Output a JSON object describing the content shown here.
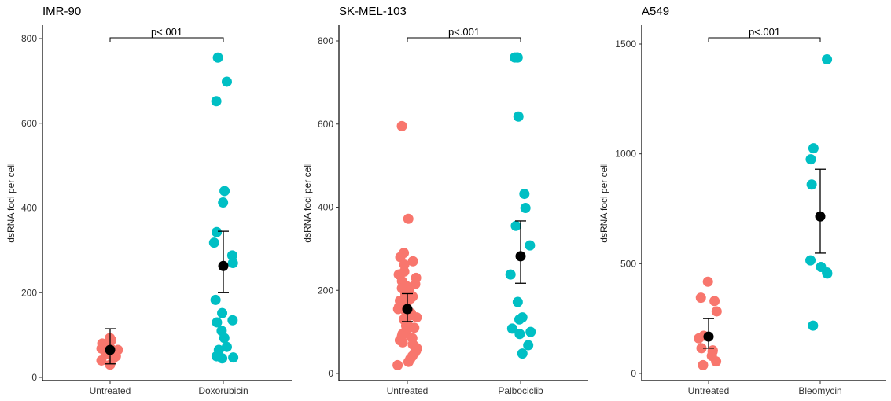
{
  "colors": {
    "control": "#F8766D",
    "treated": "#00BFC4",
    "summary": "#000000"
  },
  "chart_data": [
    {
      "type": "scatter",
      "title": "IMR-90",
      "ylabel": "dsRNA foci per cell",
      "xlabel": "",
      "ylim": [
        0,
        820
      ],
      "yticks": [
        0,
        200,
        400,
        600,
        800
      ],
      "categories": [
        "Untreated",
        "Doxorubicin"
      ],
      "significance": "p<.001",
      "groups": [
        {
          "category": "Untreated",
          "color_key": "control",
          "points": [
            93,
            88,
            80,
            75,
            72,
            70,
            68,
            65,
            62,
            60,
            55,
            50,
            45,
            40,
            30
          ],
          "mean": 65,
          "error": [
            32,
            115
          ]
        },
        {
          "category": "Doxorubicin",
          "color_key": "treated",
          "points": [
            755,
            698,
            652,
            440,
            413,
            343,
            318,
            288,
            270,
            183,
            152,
            135,
            130,
            110,
            93,
            72,
            65,
            50,
            47,
            45
          ],
          "mean": 263,
          "error": [
            200,
            345
          ]
        }
      ]
    },
    {
      "type": "scatter",
      "title": "SK-MEL-103",
      "ylabel": "dsRNA foci per cell",
      "xlabel": "",
      "ylim": [
        0,
        820
      ],
      "yticks": [
        0,
        200,
        400,
        600,
        800
      ],
      "categories": [
        "Untreated",
        "Palbociclib"
      ],
      "significance": "p<.001",
      "groups": [
        {
          "category": "Untreated",
          "color_key": "control",
          "points": [
            595,
            372,
            290,
            280,
            270,
            262,
            245,
            238,
            230,
            222,
            215,
            210,
            205,
            198,
            190,
            185,
            180,
            175,
            170,
            165,
            160,
            155,
            150,
            145,
            140,
            135,
            130,
            125,
            120,
            115,
            110,
            105,
            100,
            95,
            90,
            85,
            80,
            75,
            70,
            65,
            60,
            55,
            50,
            42,
            35,
            28,
            20
          ],
          "mean": 155,
          "error": [
            125,
            192
          ]
        },
        {
          "category": "Palbociclib",
          "color_key": "treated",
          "points": [
            760,
            760,
            760,
            618,
            432,
            398,
            355,
            308,
            238,
            172,
            135,
            130,
            108,
            100,
            95,
            68,
            48
          ],
          "mean": 282,
          "error": [
            217,
            367
          ]
        }
      ]
    },
    {
      "type": "scatter",
      "title": "A549",
      "ylabel": "dsRNA foci per cell",
      "xlabel": "",
      "ylim": [
        0,
        1550
      ],
      "yticks": [
        0,
        500,
        1000,
        1500
      ],
      "categories": [
        "Untreated",
        "Bleomycin"
      ],
      "significance": "p<.001",
      "groups": [
        {
          "category": "Untreated",
          "color_key": "control",
          "points": [
            418,
            345,
            330,
            283,
            172,
            160,
            115,
            105,
            100,
            80,
            55,
            38
          ],
          "mean": 168,
          "error": [
            115,
            250
          ]
        },
        {
          "category": "Bleomycin",
          "color_key": "treated",
          "points": [
            1430,
            1025,
            975,
            860,
            515,
            485,
            460,
            455,
            218
          ],
          "mean": 715,
          "error": [
            548,
            930
          ]
        }
      ]
    }
  ]
}
